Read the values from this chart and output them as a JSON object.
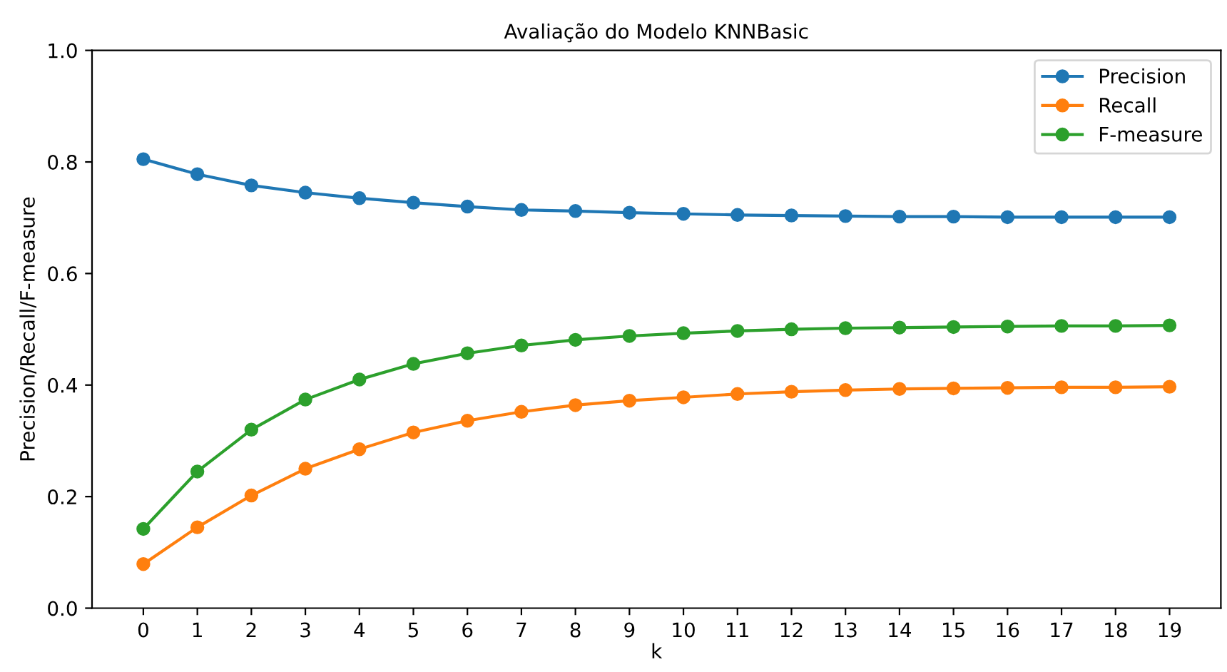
{
  "chart_data": {
    "type": "line",
    "title": "Avaliação do Modelo KNNBasic",
    "xlabel": "k",
    "ylabel": "Precision/Recall/F-measure",
    "x": [
      0,
      1,
      2,
      3,
      4,
      5,
      6,
      7,
      8,
      9,
      10,
      11,
      12,
      13,
      14,
      15,
      16,
      17,
      18,
      19
    ],
    "xlim": [
      -0.95,
      19.95
    ],
    "xticks": [
      0,
      1,
      2,
      3,
      4,
      5,
      6,
      7,
      8,
      9,
      10,
      11,
      12,
      13,
      14,
      15,
      16,
      17,
      18,
      19
    ],
    "ylim": [
      0,
      1
    ],
    "yticks": [
      {
        "value": 0,
        "label": "0.0"
      },
      {
        "value": 0.2,
        "label": "0.2"
      },
      {
        "value": 0.4,
        "label": "0.4"
      },
      {
        "value": 0.6,
        "label": "0.6"
      },
      {
        "value": 0.8,
        "label": "0.8"
      },
      {
        "value": 1,
        "label": "1.0"
      }
    ],
    "marker": "circle",
    "line_style": "solid",
    "legend": "top right",
    "grid": false,
    "series": [
      {
        "name": "Precision",
        "color": "#1f77b4",
        "values": [
          0.805,
          0.778,
          0.758,
          0.745,
          0.735,
          0.727,
          0.72,
          0.714,
          0.712,
          0.709,
          0.707,
          0.705,
          0.704,
          0.703,
          0.702,
          0.702,
          0.701,
          0.701,
          0.701,
          0.701
        ]
      },
      {
        "name": "Recall",
        "color": "#ff7f0e",
        "values": [
          0.079,
          0.145,
          0.202,
          0.25,
          0.285,
          0.315,
          0.336,
          0.352,
          0.364,
          0.372,
          0.378,
          0.384,
          0.388,
          0.391,
          0.393,
          0.394,
          0.395,
          0.396,
          0.396,
          0.397
        ]
      },
      {
        "name": "F-measure",
        "color": "#2ca02c",
        "values": [
          0.142,
          0.245,
          0.32,
          0.374,
          0.41,
          0.438,
          0.457,
          0.471,
          0.481,
          0.488,
          0.493,
          0.497,
          0.5,
          0.502,
          0.503,
          0.504,
          0.505,
          0.506,
          0.506,
          0.507
        ]
      }
    ]
  }
}
